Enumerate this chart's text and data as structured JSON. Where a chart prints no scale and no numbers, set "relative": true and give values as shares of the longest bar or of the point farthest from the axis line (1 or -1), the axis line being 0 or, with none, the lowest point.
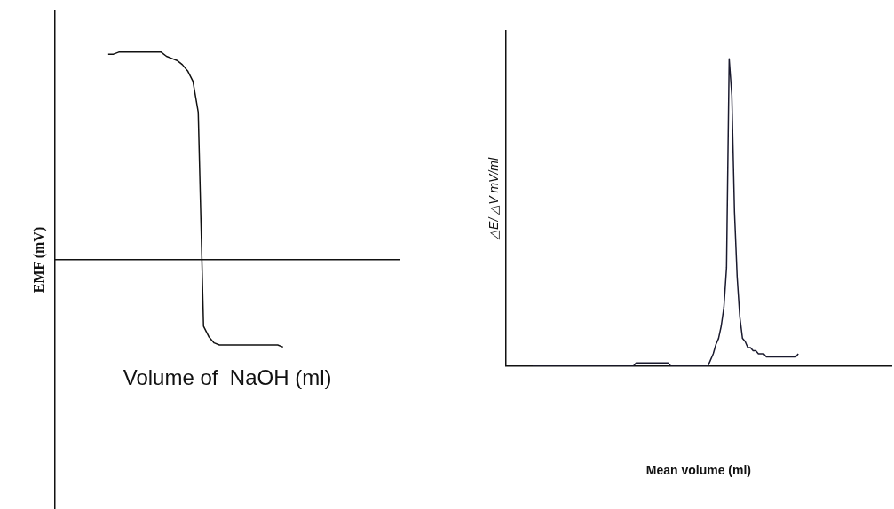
{
  "chart_data": [
    {
      "type": "line",
      "relative": true,
      "xlabel": "Volume of  NaOH (ml)",
      "ylabel": "EMF (mV)",
      "marker": "none",
      "line_style": "solid",
      "categories": [
        null,
        null,
        null,
        null,
        null,
        null,
        null,
        null,
        null,
        null,
        null,
        null,
        null,
        null,
        null,
        null,
        null,
        null,
        null,
        null,
        null,
        null,
        null,
        null,
        null,
        null,
        null,
        null,
        null,
        null,
        null,
        null,
        null,
        null,
        null,
        null,
        null,
        null,
        null,
        null,
        null,
        null,
        null,
        null,
        null,
        null,
        null,
        null,
        null,
        null,
        null,
        null,
        null,
        null,
        null,
        null,
        null,
        null,
        null,
        null,
        null,
        null,
        null,
        null,
        null,
        null
      ],
      "series": [
        {
          "color": "#111111",
          "values": [
            null,
            null,
            null,
            null,
            null,
            null,
            null,
            null,
            null,
            null,
            0.99,
            0.99,
            1,
            1,
            1,
            1,
            1,
            1,
            1,
            1,
            1,
            0.98,
            0.97,
            0.96,
            0.94,
            0.91,
            0.86,
            0.71,
            -0.32,
            -0.37,
            -0.4,
            -0.41,
            -0.41,
            -0.41,
            -0.41,
            -0.41,
            -0.41,
            -0.41,
            -0.41,
            -0.41,
            -0.41,
            -0.41,
            -0.41,
            -0.42,
            null,
            null,
            null,
            null,
            null,
            null,
            null,
            null,
            null,
            null,
            null,
            null,
            null,
            null,
            null,
            null,
            null,
            null,
            null,
            null,
            null,
            null
          ]
        }
      ]
    },
    {
      "type": "line",
      "relative": true,
      "xlabel": "Mean volume (ml)",
      "ylabel": "△E/ △V mV/ml",
      "marker": "none",
      "line_style": "solid",
      "categories": [
        null,
        null,
        null,
        null,
        null,
        null,
        null,
        null,
        null,
        null,
        null,
        null,
        null,
        null,
        null,
        null,
        null,
        null,
        null,
        null,
        null,
        null,
        null,
        null,
        null,
        null,
        null,
        null,
        null,
        null,
        null,
        null,
        null,
        null,
        null,
        null,
        null,
        null,
        null,
        null,
        null,
        null,
        null,
        null,
        null,
        null,
        null,
        null,
        null,
        null,
        null,
        null,
        null,
        null,
        null,
        null,
        null,
        null,
        null,
        null,
        null,
        null,
        null,
        null,
        null,
        null,
        null,
        null,
        null,
        null,
        null,
        null,
        null,
        null,
        null,
        null,
        null,
        null,
        null,
        null,
        null,
        null,
        null,
        null,
        null,
        null,
        null,
        null,
        null,
        null,
        null,
        null,
        null,
        null,
        null,
        null,
        null,
        null,
        null,
        null,
        null,
        null,
        null,
        null,
        null,
        null,
        null,
        null,
        null,
        null,
        null,
        null,
        null,
        null,
        null,
        null,
        null,
        null,
        null,
        null,
        null,
        null,
        null,
        null,
        null,
        null,
        null,
        null,
        null,
        null,
        null,
        null,
        null,
        null,
        null,
        null,
        null,
        null,
        null,
        null,
        null,
        null,
        null,
        null,
        null,
        null
      ],
      "series": [
        {
          "color": "#1a1a2e",
          "values": [
            null,
            null,
            null,
            null,
            null,
            null,
            null,
            null,
            null,
            null,
            0,
            0,
            0,
            0,
            0,
            0,
            0,
            0,
            0,
            0,
            0,
            0,
            0,
            0,
            0,
            0,
            0,
            0,
            0,
            0,
            0,
            0,
            0,
            0,
            0,
            0,
            0,
            0,
            0,
            0,
            0,
            0,
            0,
            0,
            0,
            0,
            0,
            0,
            0,
            0.01,
            0.01,
            0.01,
            0.01,
            0.01,
            0.01,
            0.01,
            0.01,
            0.01,
            0.01,
            0.01,
            0.01,
            0.01,
            0,
            0,
            0,
            0,
            0,
            0,
            0,
            0,
            0,
            0,
            0,
            0,
            0,
            0,
            0,
            0.02,
            0.04,
            0.07,
            0.09,
            0.13,
            0.19,
            0.32,
            1,
            0.88,
            0.5,
            0.29,
            0.16,
            0.09,
            0.08,
            0.06,
            0.06,
            0.05,
            0.05,
            0.04,
            0.04,
            0.04,
            0.03,
            0.03,
            0.03,
            0.03,
            0.03,
            0.03,
            0.03,
            0.03,
            0.03,
            0.03,
            0.03,
            0.03,
            0.04,
            null,
            null,
            null,
            null,
            null,
            null,
            null,
            null,
            null,
            null,
            null,
            null,
            null,
            null,
            null,
            null,
            null,
            null,
            null,
            null,
            null,
            null,
            null,
            null,
            null,
            null,
            null,
            null,
            null,
            null,
            null,
            null,
            null,
            null,
            null
          ]
        }
      ]
    }
  ]
}
